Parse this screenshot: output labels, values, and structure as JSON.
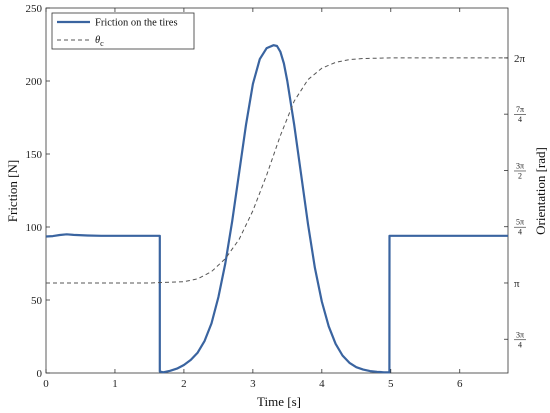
{
  "chart_data": {
    "type": "line",
    "xlabel": "Time [s]",
    "ylabel_left": "Friction [N]",
    "ylabel_right": "Orientation [rad]",
    "xlim": [
      0,
      6.7
    ],
    "ylim_left": [
      0,
      250
    ],
    "ylim_right": [
      1.885,
      6.98
    ],
    "x_ticks": [
      0,
      1,
      2,
      3,
      4,
      5,
      6
    ],
    "x_tick_labels": [
      "0",
      "1",
      "2",
      "3",
      "4",
      "5",
      "6"
    ],
    "y_ticks_left": [
      0,
      50,
      100,
      150,
      200,
      250
    ],
    "y_tick_labels_left": [
      "0",
      "50",
      "100",
      "150",
      "200",
      "250"
    ],
    "y_ticks_right": [
      {
        "value": 2.356,
        "num": "3π",
        "den": "4"
      },
      {
        "value": 3.1416,
        "label": "π"
      },
      {
        "value": 3.927,
        "num": "5π",
        "den": "4"
      },
      {
        "value": 4.712,
        "num": "3π",
        "den": "2"
      },
      {
        "value": 5.498,
        "num": "7π",
        "den": "4"
      },
      {
        "value": 6.2832,
        "label": "2π"
      }
    ],
    "grid": false,
    "legend_position": "top-left",
    "series": [
      {
        "name": "Friction on the tires",
        "axis": "left",
        "style": "solid",
        "color": "#3a64a0",
        "x": [
          0,
          0.1,
          0.2,
          0.3,
          0.4,
          0.6,
          0.8,
          1.0,
          1.2,
          1.4,
          1.6,
          1.65,
          1.651,
          1.7,
          1.8,
          1.9,
          2.0,
          2.1,
          2.2,
          2.3,
          2.4,
          2.5,
          2.6,
          2.7,
          2.8,
          2.9,
          3.0,
          3.1,
          3.2,
          3.3,
          3.35,
          3.4,
          3.45,
          3.5,
          3.6,
          3.7,
          3.8,
          3.9,
          4.0,
          4.1,
          4.2,
          4.3,
          4.4,
          4.5,
          4.6,
          4.7,
          4.8,
          4.9,
          4.98,
          4.981,
          5.2,
          5.5,
          6.0,
          6.5,
          6.7
        ],
        "y": [
          93.5,
          93.8,
          94.5,
          95,
          94.6,
          94.2,
          94,
          94,
          94,
          94,
          94,
          94,
          1,
          0.5,
          1.5,
          3,
          5.5,
          9,
          14,
          22,
          34,
          52,
          75,
          104,
          137,
          170,
          198,
          215,
          222.5,
          224.5,
          224,
          220,
          212,
          200,
          170,
          136,
          102,
          72,
          49,
          32,
          20,
          12,
          7,
          4,
          2.3,
          1.3,
          0.8,
          0.5,
          0.4,
          94,
          94,
          94,
          94,
          94,
          94
        ]
      },
      {
        "name": "θ_c",
        "name_main": "θ",
        "name_sub": "c",
        "axis": "right",
        "style": "dashed",
        "color": "#555555",
        "x": [
          0,
          0.5,
          1.0,
          1.5,
          2.0,
          2.2,
          2.4,
          2.6,
          2.8,
          3.0,
          3.2,
          3.4,
          3.6,
          3.8,
          4.0,
          4.2,
          4.4,
          4.6,
          5.0,
          5.5,
          6.0,
          6.7
        ],
        "y": [
          3.1416,
          3.1416,
          3.1416,
          3.1416,
          3.16,
          3.2,
          3.3,
          3.48,
          3.75,
          4.15,
          4.65,
          5.2,
          5.68,
          5.98,
          6.14,
          6.22,
          6.26,
          6.275,
          6.283,
          6.283,
          6.283,
          6.283
        ]
      }
    ]
  }
}
